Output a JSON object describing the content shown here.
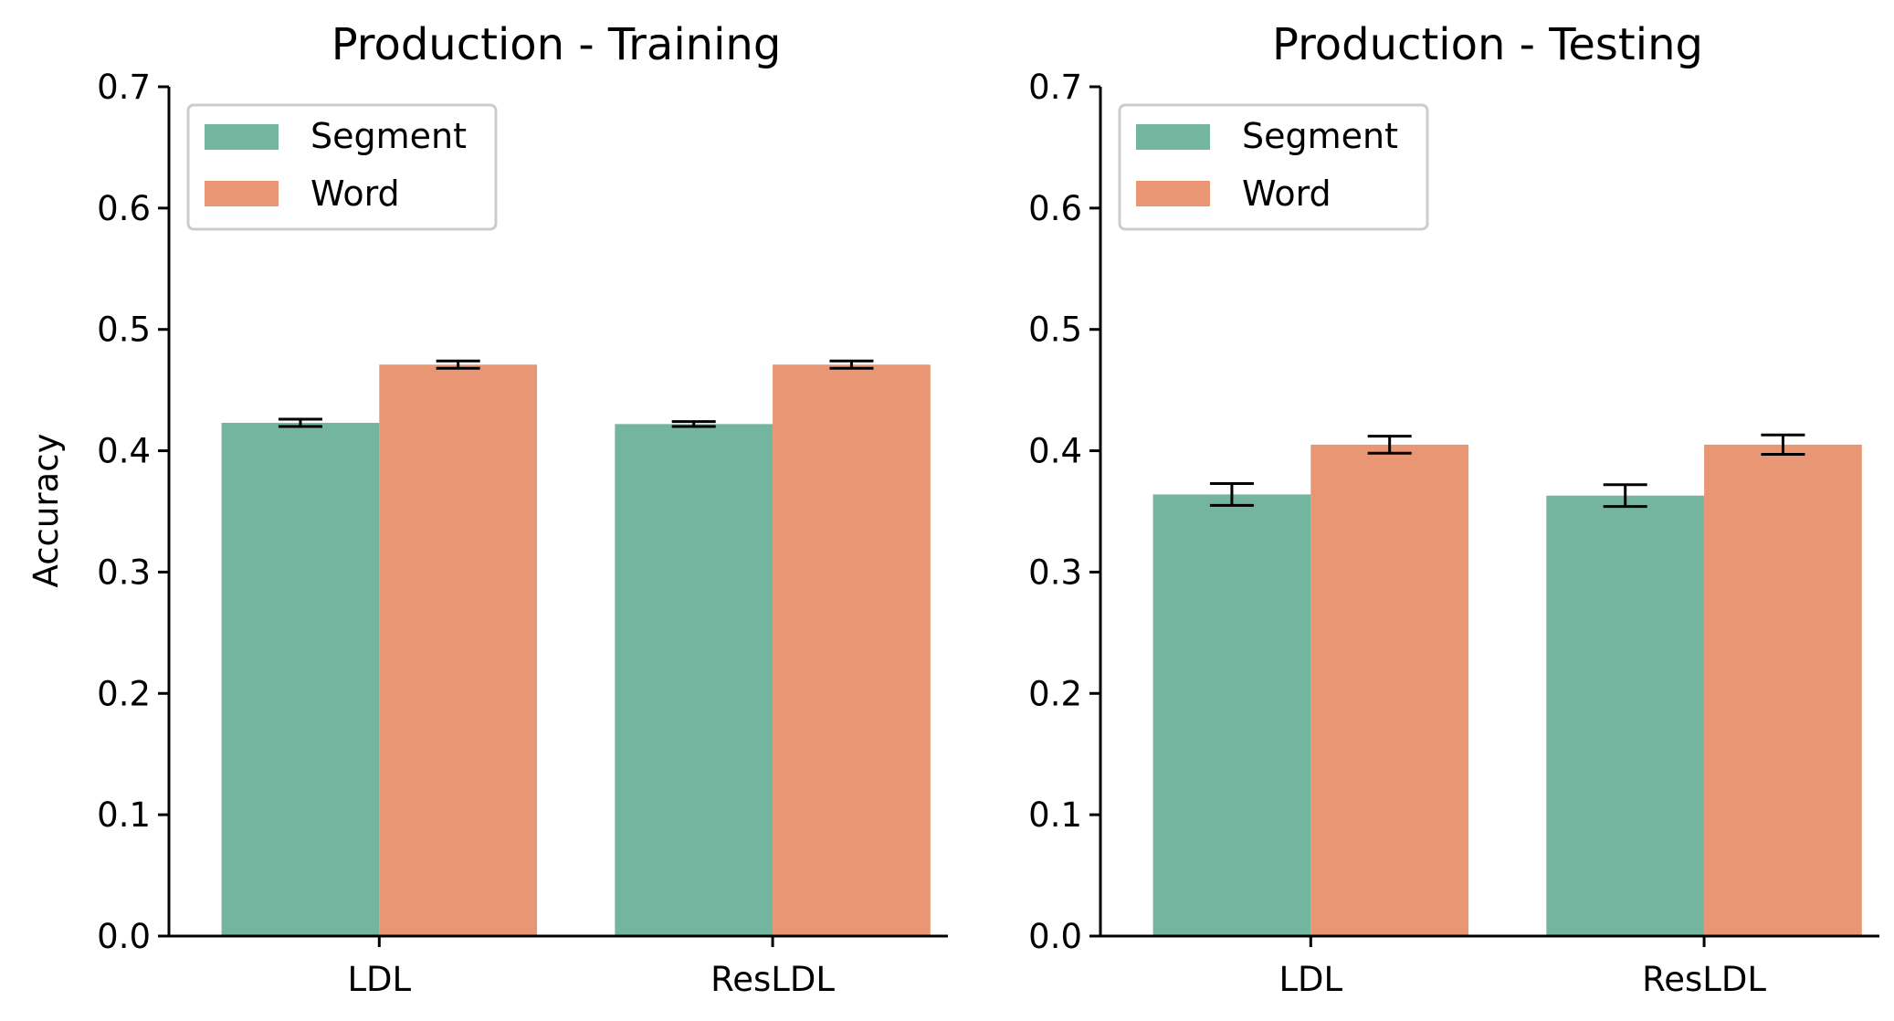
{
  "colors": {
    "segment": "#74b5a0",
    "word": "#e89673",
    "axis": "#000000",
    "legend_border": "#cccccc"
  },
  "chart_data": [
    {
      "type": "bar",
      "title": "Production - Training",
      "xlabel": "",
      "ylabel": "Accuracy",
      "ylim": [
        0,
        0.7
      ],
      "yticks": [
        "0.0",
        "0.1",
        "0.2",
        "0.3",
        "0.4",
        "0.5",
        "0.6",
        "0.7"
      ],
      "categories": [
        "LDL",
        "ResLDL"
      ],
      "legend": {
        "position": "top-left",
        "entries": [
          "Segment",
          "Word"
        ]
      },
      "series": [
        {
          "name": "Segment",
          "values": [
            0.423,
            0.422
          ],
          "errors": [
            0.003,
            0.002
          ]
        },
        {
          "name": "Word",
          "values": [
            0.471,
            0.471
          ],
          "errors": [
            0.003,
            0.003
          ]
        }
      ]
    },
    {
      "type": "bar",
      "title": "Production - Testing",
      "xlabel": "",
      "ylabel": "",
      "ylim": [
        0,
        0.7
      ],
      "yticks": [
        "0.0",
        "0.1",
        "0.2",
        "0.3",
        "0.4",
        "0.5",
        "0.6",
        "0.7"
      ],
      "categories": [
        "LDL",
        "ResLDL"
      ],
      "legend": {
        "position": "top-left",
        "entries": [
          "Segment",
          "Word"
        ]
      },
      "series": [
        {
          "name": "Segment",
          "values": [
            0.364,
            0.363
          ],
          "errors": [
            0.009,
            0.009
          ]
        },
        {
          "name": "Word",
          "values": [
            0.405,
            0.405
          ],
          "errors": [
            0.007,
            0.008
          ]
        }
      ]
    }
  ]
}
